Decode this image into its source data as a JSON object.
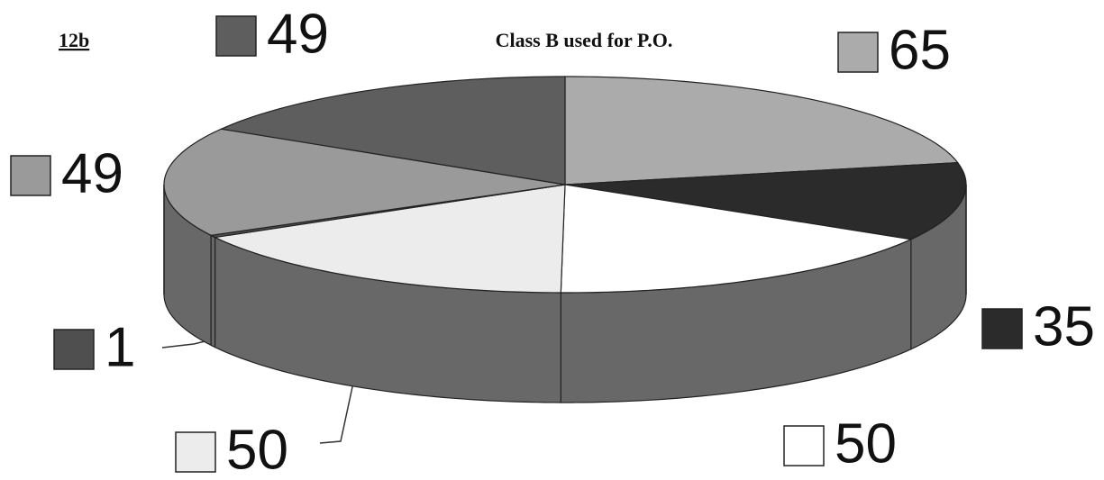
{
  "chart_data": {
    "type": "pie",
    "title": "Class B used for P.O.",
    "figure_label": "12b",
    "values": [
      65,
      35,
      50,
      50,
      1,
      49,
      49
    ],
    "colors": [
      "#ababab",
      "#2b2b2b",
      "#ffffff",
      "#ececec",
      "#4f4f4f",
      "#9a9a9a",
      "#5e5e5e"
    ]
  }
}
